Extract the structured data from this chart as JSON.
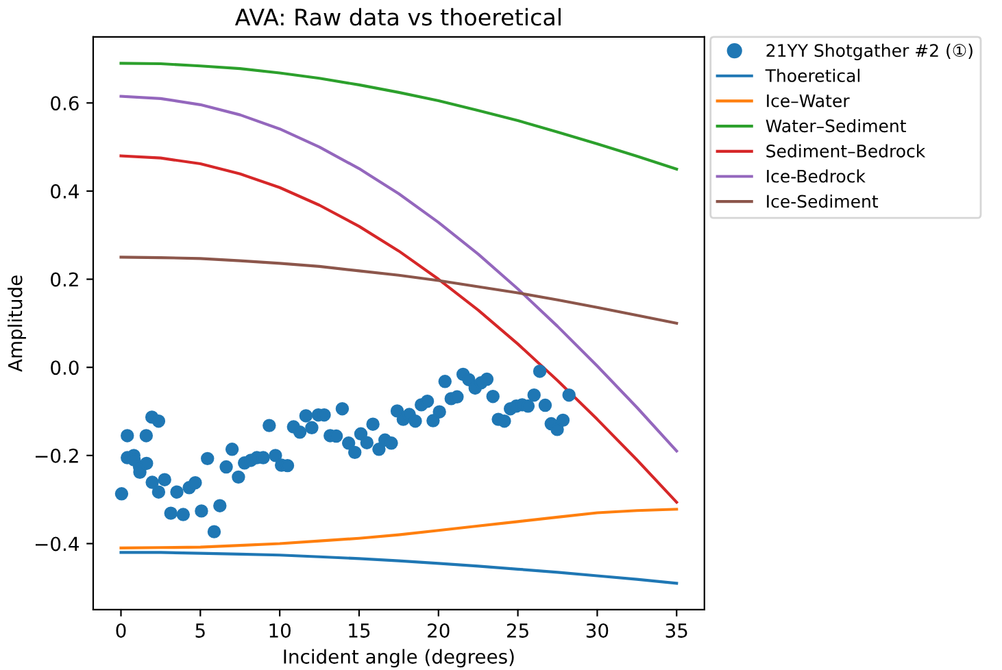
{
  "chart_data": {
    "type": "line",
    "title": "AVA: Raw data vs thoeretical",
    "xlabel": "Incident angle (degrees)",
    "ylabel": "Amplitude",
    "xlim": [
      -1.75,
      36.75
    ],
    "ylim": [
      -0.55,
      0.75
    ],
    "xticks": [
      0,
      5,
      10,
      15,
      20,
      25,
      30,
      35
    ],
    "yticks": [
      {
        "value": -0.4,
        "label": "−0.4"
      },
      {
        "value": -0.2,
        "label": "−0.2"
      },
      {
        "value": 0.0,
        "label": "0.0"
      },
      {
        "value": 0.2,
        "label": "0.2"
      },
      {
        "value": 0.4,
        "label": "0.4"
      },
      {
        "value": 0.6,
        "label": "0.6"
      }
    ],
    "grid": false,
    "legend": "top right",
    "series": [
      {
        "name": "21YY Shotgather #2 (①)",
        "type": "scatter",
        "marker": "circle",
        "color": "#1f77b4",
        "x": [
          0.04,
          0.4,
          0.4,
          0.81,
          0.83,
          1.17,
          1.19,
          1.59,
          1.61,
          1.95,
          1.97,
          2.37,
          2.37,
          2.75,
          3.14,
          3.52,
          3.92,
          4.3,
          4.68,
          5.07,
          5.45,
          5.87,
          6.23,
          6.63,
          7.0,
          7.4,
          7.78,
          8.18,
          8.56,
          8.96,
          9.34,
          9.73,
          10.11,
          10.49,
          10.87,
          11.27,
          11.65,
          12.02,
          12.43,
          12.8,
          13.18,
          13.56,
          13.94,
          14.34,
          14.73,
          15.11,
          15.49,
          15.87,
          16.25,
          16.63,
          17.03,
          17.4,
          17.78,
          18.16,
          18.54,
          18.92,
          19.3,
          19.66,
          20.06,
          20.41,
          20.8,
          21.17,
          21.55,
          21.91,
          22.31,
          22.69,
          23.05,
          23.43,
          23.77,
          24.15,
          24.53,
          24.9,
          25.27,
          25.64,
          26.02,
          26.38,
          26.72,
          27.1,
          27.48,
          27.84,
          28.22
        ],
        "values": [
          -0.287,
          -0.155,
          -0.205,
          -0.2,
          -0.21,
          -0.226,
          -0.238,
          -0.155,
          -0.218,
          -0.113,
          -0.261,
          -0.122,
          -0.283,
          -0.255,
          -0.331,
          -0.283,
          -0.334,
          -0.273,
          -0.262,
          -0.326,
          -0.207,
          -0.373,
          -0.314,
          -0.226,
          -0.186,
          -0.249,
          -0.217,
          -0.211,
          -0.205,
          -0.205,
          -0.132,
          -0.2,
          -0.222,
          -0.223,
          -0.135,
          -0.147,
          -0.11,
          -0.137,
          -0.108,
          -0.108,
          -0.155,
          -0.156,
          -0.094,
          -0.172,
          -0.193,
          -0.151,
          -0.171,
          -0.129,
          -0.186,
          -0.165,
          -0.172,
          -0.099,
          -0.118,
          -0.107,
          -0.122,
          -0.085,
          -0.077,
          -0.121,
          -0.101,
          -0.032,
          -0.071,
          -0.067,
          -0.016,
          -0.028,
          -0.047,
          -0.035,
          -0.027,
          -0.066,
          -0.118,
          -0.122,
          -0.094,
          -0.088,
          -0.085,
          -0.088,
          -0.063,
          -0.009,
          -0.086,
          -0.128,
          -0.141,
          -0.12,
          -0.063
        ]
      },
      {
        "name": "Thoeretical",
        "type": "line",
        "color": "#1f77b4",
        "x": [
          0,
          2.5,
          5,
          7.5,
          10,
          12.5,
          15,
          17.5,
          20,
          22.5,
          25,
          27.5,
          30,
          32.5,
          35
        ],
        "values": [
          -0.42,
          -0.42,
          -0.422,
          -0.424,
          -0.426,
          -0.43,
          -0.434,
          -0.439,
          -0.445,
          -0.451,
          -0.458,
          -0.465,
          -0.473,
          -0.481,
          -0.49
        ]
      },
      {
        "name": "Ice–Water",
        "type": "line",
        "color": "#ff7f0e",
        "x": [
          0,
          2.5,
          5,
          7.5,
          10,
          12.5,
          15,
          17.5,
          20,
          22.5,
          25,
          27.5,
          30,
          32.5,
          35
        ],
        "values": [
          -0.41,
          -0.409,
          -0.408,
          -0.404,
          -0.4,
          -0.394,
          -0.388,
          -0.38,
          -0.37,
          -0.36,
          -0.35,
          -0.34,
          -0.33,
          -0.325,
          -0.322
        ]
      },
      {
        "name": "Water–Sediment",
        "type": "line",
        "color": "#2ca02c",
        "x": [
          0,
          2.5,
          5,
          7.5,
          10,
          12.5,
          15,
          17.5,
          20,
          22.5,
          25,
          27.5,
          30,
          32.5,
          35
        ],
        "values": [
          0.69,
          0.689,
          0.684,
          0.678,
          0.668,
          0.656,
          0.641,
          0.624,
          0.605,
          0.583,
          0.56,
          0.534,
          0.507,
          0.479,
          0.45
        ]
      },
      {
        "name": "Sediment–Bedrock",
        "type": "line",
        "color": "#d62728",
        "x": [
          0,
          2.5,
          5,
          7.5,
          10,
          12.5,
          15,
          17.5,
          20,
          22.5,
          25,
          27.5,
          30,
          32.5,
          35
        ],
        "values": [
          0.48,
          0.475,
          0.462,
          0.439,
          0.408,
          0.368,
          0.32,
          0.264,
          0.2,
          0.13,
          0.053,
          -0.03,
          -0.118,
          -0.21,
          -0.306
        ]
      },
      {
        "name": "Ice-Bedrock",
        "type": "line",
        "color": "#9467bd",
        "x": [
          0,
          2.5,
          5,
          7.5,
          10,
          12.5,
          15,
          17.5,
          20,
          22.5,
          25,
          27.5,
          30,
          32.5,
          35
        ],
        "values": [
          0.615,
          0.61,
          0.596,
          0.573,
          0.541,
          0.5,
          0.451,
          0.394,
          0.329,
          0.257,
          0.178,
          0.093,
          0.003,
          -0.091,
          -0.19
        ]
      },
      {
        "name": "Ice-Sediment",
        "type": "line",
        "color": "#8c564b",
        "x": [
          0,
          2.5,
          5,
          7.5,
          10,
          12.5,
          15,
          17.5,
          20,
          22.5,
          25,
          27.5,
          30,
          32.5,
          35
        ],
        "values": [
          0.25,
          0.249,
          0.247,
          0.242,
          0.236,
          0.229,
          0.219,
          0.209,
          0.197,
          0.183,
          0.169,
          0.153,
          0.136,
          0.118,
          0.1
        ]
      }
    ]
  }
}
